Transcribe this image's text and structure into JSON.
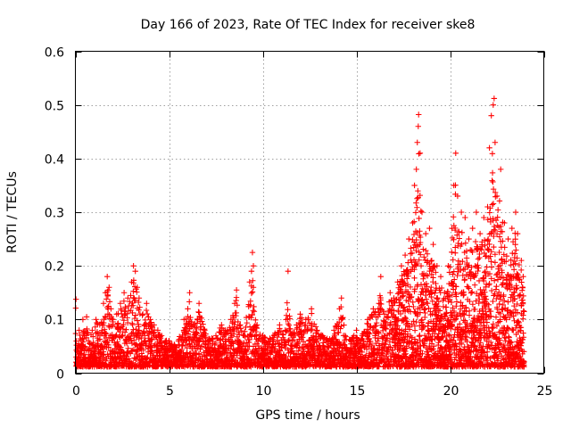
{
  "chart_data": {
    "type": "scatter",
    "title": "Day 166 of 2023, Rate Of TEC Index for receiver ske8",
    "xlabel": "GPS time / hours",
    "ylabel": "ROTI / TECUs",
    "xlim": [
      0,
      25
    ],
    "ylim": [
      0,
      0.6
    ],
    "xticks": [
      0,
      5,
      10,
      15,
      20,
      25
    ],
    "xtick_labels": [
      "0",
      "5",
      "10",
      "15",
      "20",
      "25"
    ],
    "yticks": [
      0,
      0.1,
      0.2,
      0.3,
      0.4,
      0.5,
      0.6
    ],
    "ytick_labels": [
      "0",
      "0.1",
      "0.2",
      "0.3",
      "0.4",
      "0.5",
      "0.6"
    ],
    "grid": true,
    "marker": "+",
    "series_color": "#ff0000",
    "series": [
      {
        "name": "ROTI",
        "points": [
          [
            0.05,
            0.06
          ],
          [
            0.1,
            0.04
          ],
          [
            0.2,
            0.08
          ],
          [
            0.3,
            0.05
          ],
          [
            0.4,
            0.1
          ],
          [
            0.5,
            0.07
          ],
          [
            0.6,
            0.105
          ],
          [
            0.7,
            0.06
          ],
          [
            0.9,
            0.08
          ],
          [
            1.1,
            0.1
          ],
          [
            1.3,
            0.09
          ],
          [
            1.5,
            0.13
          ],
          [
            1.6,
            0.15
          ],
          [
            1.7,
            0.18
          ],
          [
            1.8,
            0.16
          ],
          [
            1.9,
            0.12
          ],
          [
            2.0,
            0.1
          ],
          [
            2.2,
            0.11
          ],
          [
            2.4,
            0.13
          ],
          [
            2.6,
            0.15
          ],
          [
            2.8,
            0.14
          ],
          [
            3.0,
            0.17
          ],
          [
            3.1,
            0.2
          ],
          [
            3.2,
            0.19
          ],
          [
            3.3,
            0.16
          ],
          [
            3.4,
            0.14
          ],
          [
            3.6,
            0.11
          ],
          [
            3.8,
            0.13
          ],
          [
            4.0,
            0.1
          ],
          [
            4.2,
            0.09
          ],
          [
            4.4,
            0.08
          ],
          [
            4.6,
            0.07
          ],
          [
            4.8,
            0.06
          ],
          [
            5.0,
            0.06
          ],
          [
            5.3,
            0.05
          ],
          [
            5.5,
            0.06
          ],
          [
            5.8,
            0.1
          ],
          [
            6.0,
            0.12
          ],
          [
            6.1,
            0.15
          ],
          [
            6.3,
            0.09
          ],
          [
            6.6,
            0.13
          ],
          [
            6.9,
            0.08
          ],
          [
            7.2,
            0.06
          ],
          [
            7.5,
            0.07
          ],
          [
            7.8,
            0.09
          ],
          [
            8.0,
            0.08
          ],
          [
            8.3,
            0.1
          ],
          [
            8.5,
            0.13
          ],
          [
            8.6,
            0.155
          ],
          [
            8.8,
            0.09
          ],
          [
            9.0,
            0.07
          ],
          [
            9.3,
            0.17
          ],
          [
            9.4,
            0.19
          ],
          [
            9.45,
            0.225
          ],
          [
            9.5,
            0.2
          ],
          [
            9.5,
            0.16
          ],
          [
            9.7,
            0.09
          ],
          [
            10.0,
            0.07
          ],
          [
            10.3,
            0.06
          ],
          [
            10.6,
            0.07
          ],
          [
            10.9,
            0.09
          ],
          [
            11.2,
            0.08
          ],
          [
            11.35,
            0.19
          ],
          [
            11.5,
            0.07
          ],
          [
            11.8,
            0.09
          ],
          [
            12.0,
            0.11
          ],
          [
            12.3,
            0.1
          ],
          [
            12.6,
            0.12
          ],
          [
            12.9,
            0.08
          ],
          [
            13.2,
            0.07
          ],
          [
            13.5,
            0.06
          ],
          [
            13.8,
            0.08
          ],
          [
            14.1,
            0.12
          ],
          [
            14.2,
            0.14
          ],
          [
            14.4,
            0.07
          ],
          [
            14.7,
            0.06
          ],
          [
            15.0,
            0.08
          ],
          [
            15.3,
            0.07
          ],
          [
            15.6,
            0.1
          ],
          [
            15.9,
            0.12
          ],
          [
            16.2,
            0.13
          ],
          [
            16.3,
            0.18
          ],
          [
            16.5,
            0.11
          ],
          [
            16.8,
            0.15
          ],
          [
            17.0,
            0.14
          ],
          [
            17.2,
            0.17
          ],
          [
            17.4,
            0.2
          ],
          [
            17.6,
            0.22
          ],
          [
            17.8,
            0.25
          ],
          [
            18.0,
            0.28
          ],
          [
            18.1,
            0.35
          ],
          [
            18.2,
            0.38
          ],
          [
            18.25,
            0.43
          ],
          [
            18.3,
            0.46
          ],
          [
            18.32,
            0.482
          ],
          [
            18.4,
            0.41
          ],
          [
            18.5,
            0.3
          ],
          [
            18.7,
            0.26
          ],
          [
            18.9,
            0.27
          ],
          [
            19.1,
            0.24
          ],
          [
            19.3,
            0.2
          ],
          [
            19.5,
            0.18
          ],
          [
            19.7,
            0.15
          ],
          [
            19.9,
            0.2
          ],
          [
            20.1,
            0.27
          ],
          [
            20.2,
            0.35
          ],
          [
            20.3,
            0.41
          ],
          [
            20.4,
            0.33
          ],
          [
            20.6,
            0.3
          ],
          [
            20.8,
            0.29
          ],
          [
            21.0,
            0.25
          ],
          [
            21.2,
            0.27
          ],
          [
            21.4,
            0.3
          ],
          [
            21.6,
            0.26
          ],
          [
            21.8,
            0.29
          ],
          [
            22.0,
            0.31
          ],
          [
            22.1,
            0.42
          ],
          [
            22.2,
            0.48
          ],
          [
            22.3,
            0.5
          ],
          [
            22.35,
            0.512
          ],
          [
            22.4,
            0.43
          ],
          [
            22.5,
            0.33
          ],
          [
            22.7,
            0.38
          ],
          [
            22.9,
            0.28
          ],
          [
            23.1,
            0.25
          ],
          [
            23.3,
            0.27
          ],
          [
            23.5,
            0.3
          ],
          [
            23.6,
            0.26
          ],
          [
            23.8,
            0.21
          ],
          [
            23.9,
            0.18
          ]
        ]
      }
    ]
  }
}
